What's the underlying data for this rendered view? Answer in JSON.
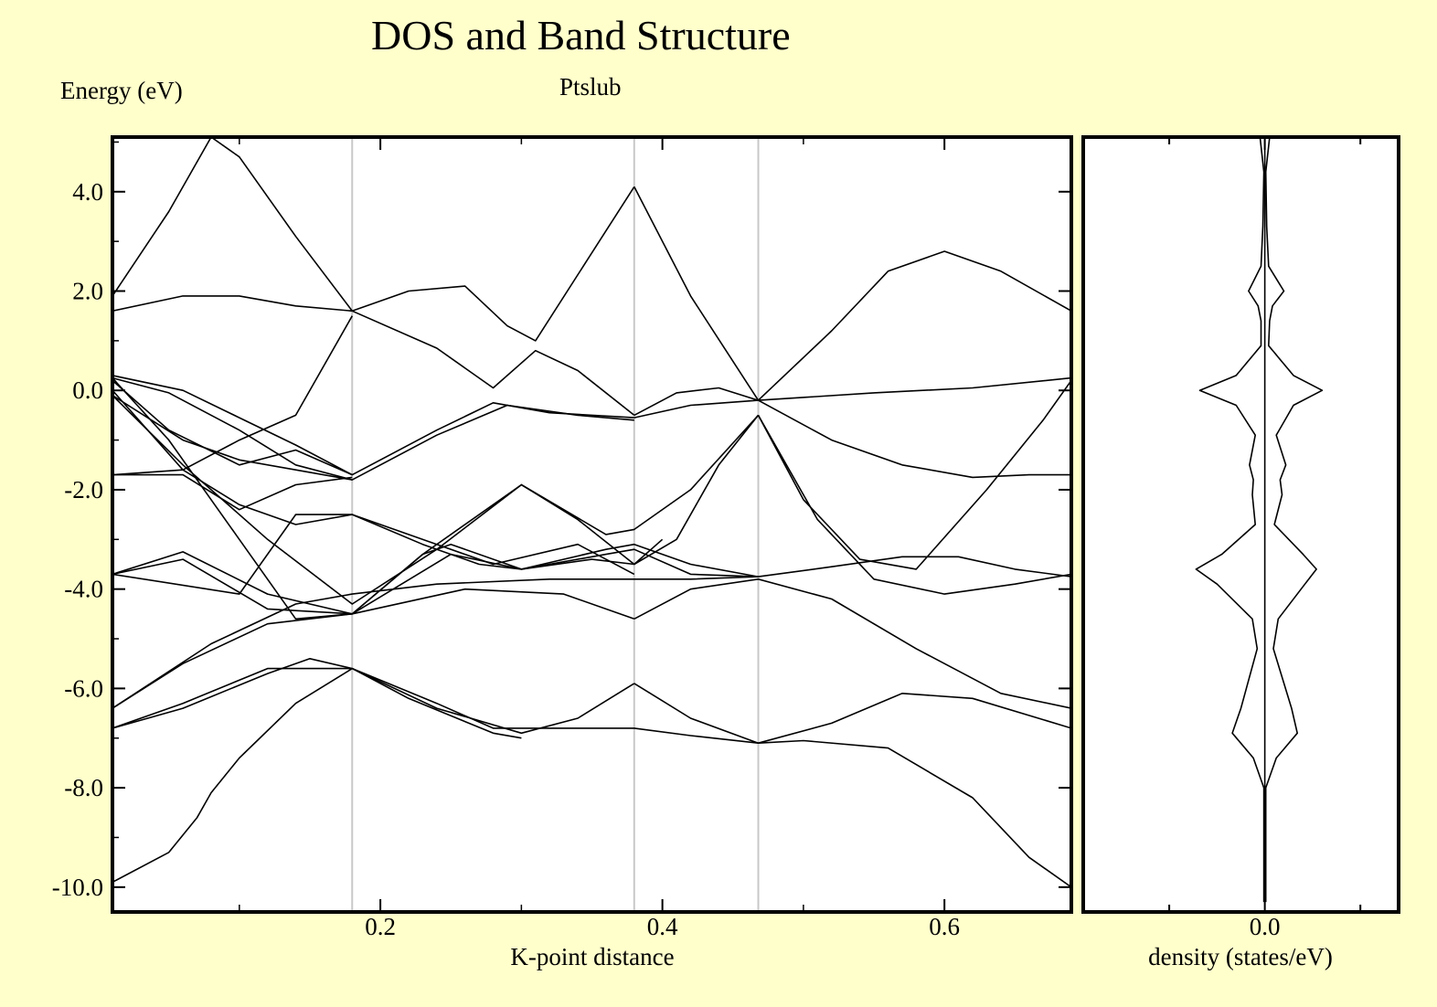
{
  "title": "DOS and Band Structure",
  "subtitle": "Ptslub",
  "y_axis_label": "Energy (eV)",
  "colors": {
    "background": "#ffffcc",
    "plot_background": "#ffffff",
    "line": "#000000",
    "symmetry_line": "#c8c8c8"
  },
  "chart_data": [
    {
      "type": "line",
      "name": "band_structure",
      "xlabel": "K-point distance",
      "ylabel": "Energy (eV)",
      "xlim": [
        0.01,
        0.69
      ],
      "ylim": [
        -10.5,
        5.1
      ],
      "x_ticks": [
        0.2,
        0.4,
        0.6
      ],
      "x_tick_labels": [
        "0.2",
        "0.4",
        "0.6"
      ],
      "y_ticks": [
        4,
        2,
        0,
        -2,
        -4,
        -6,
        -8,
        -10
      ],
      "y_tick_labels": [
        "4.0",
        "2.0",
        "0.0",
        "-2.0",
        "-4.0",
        "-6.0",
        "-8.0",
        "-10.0"
      ],
      "symmetry_points": [
        0.18,
        0.38,
        0.468
      ],
      "series": [
        {
          "x": [
            0.01,
            0.05,
            0.07,
            0.08,
            0.1,
            0.14,
            0.18
          ],
          "y": [
            -9.9,
            -9.3,
            -8.6,
            -8.1,
            -7.4,
            -6.3,
            -5.6
          ]
        },
        {
          "x": [
            0.18,
            0.24,
            0.28,
            0.34,
            0.38,
            0.42,
            0.468,
            0.5,
            0.56,
            0.62,
            0.66,
            0.69
          ],
          "y": [
            -5.6,
            -6.3,
            -6.8,
            -6.8,
            -6.8,
            -6.95,
            -7.1,
            -7.05,
            -7.2,
            -8.2,
            -9.4,
            -10.0
          ]
        },
        {
          "x": [
            0.01,
            0.06,
            0.12,
            0.15,
            0.18,
            0.24,
            0.3,
            0.34,
            0.38
          ],
          "y": [
            -6.8,
            -6.4,
            -5.7,
            -5.4,
            -5.6,
            -6.4,
            -6.9,
            -6.6,
            -5.9
          ]
        },
        {
          "x": [
            0.38,
            0.42,
            0.468,
            0.52,
            0.57,
            0.62,
            0.69
          ],
          "y": [
            -5.9,
            -6.6,
            -7.1,
            -6.7,
            -6.1,
            -6.2,
            -6.8
          ]
        },
        {
          "x": [
            0.01,
            0.06,
            0.12,
            0.18,
            0.22,
            0.28,
            0.3
          ],
          "y": [
            -6.8,
            -6.3,
            -5.6,
            -5.6,
            -6.2,
            -6.9,
            -7.0
          ]
        },
        {
          "x": [
            0.01,
            0.06,
            0.12,
            0.18,
            0.26,
            0.33,
            0.38
          ],
          "y": [
            -6.4,
            -5.5,
            -4.7,
            -4.5,
            -4.0,
            -4.1,
            -4.6
          ]
        },
        {
          "x": [
            0.38,
            0.42,
            0.468,
            0.52,
            0.58,
            0.64,
            0.69
          ],
          "y": [
            -4.6,
            -4.0,
            -3.8,
            -4.2,
            -5.2,
            -6.1,
            -6.4
          ]
        },
        {
          "x": [
            0.01,
            0.08,
            0.14,
            0.18,
            0.24,
            0.32,
            0.38,
            0.42,
            0.468
          ],
          "y": [
            -6.4,
            -5.1,
            -4.3,
            -4.1,
            -3.9,
            -3.8,
            -3.8,
            -3.8,
            -3.75
          ]
        },
        {
          "x": [
            0.468,
            0.52,
            0.57,
            0.61,
            0.65,
            0.69
          ],
          "y": [
            -3.75,
            -3.55,
            -3.35,
            -3.35,
            -3.6,
            -3.75
          ]
        },
        {
          "x": [
            0.01,
            0.06,
            0.12,
            0.18,
            0.23,
            0.25,
            0.3,
            0.36,
            0.38,
            0.42,
            0.468
          ],
          "y": [
            -3.7,
            -3.4,
            -4.4,
            -4.5,
            -3.3,
            -3.1,
            -3.6,
            -3.2,
            -3.1,
            -3.5,
            -3.75
          ]
        },
        {
          "x": [
            0.01,
            0.06,
            0.12,
            0.18,
            0.25,
            0.3,
            0.36,
            0.38,
            0.42,
            0.468
          ],
          "y": [
            -3.7,
            -3.25,
            -4.1,
            -4.5,
            -3.3,
            -3.6,
            -3.3,
            -3.2,
            -3.7,
            -3.75
          ]
        },
        {
          "x": [
            0.01,
            0.05,
            0.1,
            0.14,
            0.18,
            0.23,
            0.3,
            0.34,
            0.38,
            0.41,
            0.44,
            0.468
          ],
          "y": [
            0.25,
            -1.0,
            -3.0,
            -4.6,
            -4.5,
            -3.3,
            -1.9,
            -2.6,
            -3.5,
            -3.0,
            -1.5,
            -0.5
          ]
        },
        {
          "x": [
            0.468,
            0.5,
            0.54,
            0.58,
            0.63,
            0.67,
            0.69
          ],
          "y": [
            -0.5,
            -2.2,
            -3.4,
            -3.6,
            -2.0,
            -0.6,
            0.2
          ]
        },
        {
          "x": [
            0.01,
            0.06,
            0.12,
            0.18,
            0.24,
            0.3,
            0.36,
            0.38,
            0.42,
            0.468
          ],
          "y": [
            -0.1,
            -1.5,
            -3.0,
            -4.3,
            -3.2,
            -1.9,
            -2.9,
            -2.8,
            -2.0,
            -0.5
          ]
        },
        {
          "x": [
            0.468,
            0.51,
            0.55,
            0.6,
            0.65,
            0.69
          ],
          "y": [
            -0.5,
            -2.6,
            -3.8,
            -4.1,
            -3.9,
            -3.7
          ]
        },
        {
          "x": [
            0.01,
            0.1,
            0.14,
            0.18,
            0.23,
            0.27,
            0.3,
            0.35,
            0.38,
            0.4
          ],
          "y": [
            -3.7,
            -4.1,
            -2.5,
            -2.5,
            -3.1,
            -3.5,
            -3.6,
            -3.4,
            -3.5,
            -3.0
          ]
        },
        {
          "x": [
            0.01,
            0.06,
            0.1,
            0.14,
            0.18,
            0.24,
            0.28,
            0.34,
            0.38
          ],
          "y": [
            0.0,
            -1.6,
            -2.3,
            -2.7,
            -2.5,
            -3.1,
            -3.5,
            -3.1,
            -3.7
          ]
        },
        {
          "x": [
            0.01,
            0.05,
            0.1,
            0.14,
            0.18,
            0.24,
            0.28,
            0.32,
            0.38
          ],
          "y": [
            0.2,
            -0.8,
            -1.5,
            -1.2,
            -1.7,
            -0.8,
            -0.25,
            -0.45,
            -0.55
          ]
        },
        {
          "x": [
            0.01,
            0.06,
            0.1,
            0.14,
            0.18,
            0.24,
            0.29,
            0.34,
            0.38
          ],
          "y": [
            -0.1,
            -1.0,
            -1.4,
            -1.6,
            -1.8,
            -0.9,
            -0.3,
            -0.5,
            -0.6
          ]
        },
        {
          "x": [
            0.01,
            0.05,
            0.1,
            0.14,
            0.18
          ],
          "y": [
            0.25,
            -0.05,
            -0.8,
            -1.5,
            -1.8
          ]
        },
        {
          "x": [
            0.01,
            0.06,
            0.1,
            0.14,
            0.18
          ],
          "y": [
            0.3,
            0.0,
            -0.55,
            -1.1,
            -1.7
          ]
        },
        {
          "x": [
            0.38,
            0.42,
            0.468
          ],
          "y": [
            -0.55,
            -0.3,
            -0.2
          ]
        },
        {
          "x": [
            0.38,
            0.41,
            0.44,
            0.468
          ],
          "y": [
            -0.5,
            -0.05,
            0.05,
            -0.2
          ]
        },
        {
          "x": [
            0.468,
            0.55,
            0.62,
            0.69
          ],
          "y": [
            -0.2,
            -0.05,
            0.05,
            0.25
          ]
        },
        {
          "x": [
            0.468,
            0.52,
            0.57,
            0.62,
            0.66,
            0.69
          ],
          "y": [
            -0.2,
            -1.0,
            -1.5,
            -1.75,
            -1.7,
            -1.7
          ]
        },
        {
          "x": [
            0.01,
            0.06,
            0.1,
            0.14,
            0.18
          ],
          "y": [
            -1.7,
            -1.6,
            -1.0,
            -0.5,
            1.5
          ]
        },
        {
          "x": [
            0.01,
            0.06,
            0.1,
            0.14,
            0.18
          ],
          "y": [
            -1.7,
            -1.7,
            -2.4,
            -1.9,
            -1.75
          ]
        },
        {
          "x": [
            0.01,
            0.06,
            0.1,
            0.14,
            0.18
          ],
          "y": [
            1.6,
            1.9,
            1.9,
            1.7,
            1.6
          ]
        },
        {
          "x": [
            0.01,
            0.05,
            0.08,
            0.1,
            0.14,
            0.18
          ],
          "y": [
            1.9,
            3.6,
            5.1,
            4.7,
            3.1,
            1.6
          ]
        },
        {
          "x": [
            0.18,
            0.22,
            0.26,
            0.29,
            0.31,
            0.38
          ],
          "y": [
            1.6,
            2.0,
            2.1,
            1.3,
            1.0,
            4.1
          ]
        },
        {
          "x": [
            0.18,
            0.24,
            0.28,
            0.31,
            0.34,
            0.38
          ],
          "y": [
            1.6,
            0.85,
            0.05,
            0.8,
            0.4,
            -0.5
          ]
        },
        {
          "x": [
            0.38,
            0.42,
            0.468
          ],
          "y": [
            4.1,
            1.9,
            -0.2
          ]
        },
        {
          "x": [
            0.468,
            0.52,
            0.56,
            0.6,
            0.64,
            0.69
          ],
          "y": [
            -0.2,
            1.2,
            2.4,
            2.8,
            2.4,
            1.6
          ]
        }
      ]
    },
    {
      "type": "line",
      "name": "dos",
      "xlabel": "density (states/eV)",
      "xlim": [
        -0.19,
        0.14
      ],
      "ylim": [
        -10.5,
        5.1
      ],
      "x_ticks": [
        0.0
      ],
      "x_tick_labels": [
        "0.0"
      ],
      "series": [
        {
          "name": "dos_right",
          "energy": [
            -10.3,
            -8.0,
            -7.4,
            -6.9,
            -6.4,
            -5.2,
            -4.6,
            -3.9,
            -3.6,
            -3.3,
            -2.7,
            -2.1,
            -1.8,
            -1.5,
            -0.9,
            -0.3,
            0.0,
            0.3,
            0.9,
            1.4,
            1.7,
            2.0,
            2.5,
            3.3,
            4.4,
            5.1
          ],
          "density": [
            0.001,
            0.001,
            0.012,
            0.034,
            0.028,
            0.009,
            0.014,
            0.042,
            0.054,
            0.04,
            0.01,
            0.018,
            0.016,
            0.022,
            0.012,
            0.03,
            0.06,
            0.03,
            0.004,
            0.005,
            0.008,
            0.02,
            0.004,
            0.002,
            0.001,
            0.005
          ]
        },
        {
          "name": "dos_left",
          "energy": [
            -10.3,
            -8.0,
            -7.4,
            -6.9,
            -6.4,
            -5.2,
            -4.6,
            -3.9,
            -3.6,
            -3.3,
            -2.7,
            -2.1,
            -1.8,
            -1.5,
            -0.9,
            -0.3,
            0.0,
            0.3,
            0.9,
            1.4,
            1.7,
            2.0,
            2.5,
            3.3,
            4.4,
            5.1
          ],
          "density": [
            -0.001,
            -0.001,
            -0.012,
            -0.034,
            -0.025,
            -0.008,
            -0.013,
            -0.05,
            -0.072,
            -0.045,
            -0.01,
            -0.013,
            -0.012,
            -0.016,
            -0.01,
            -0.03,
            -0.068,
            -0.03,
            -0.004,
            -0.004,
            -0.007,
            -0.017,
            -0.004,
            -0.002,
            -0.001,
            -0.005
          ]
        }
      ]
    }
  ]
}
